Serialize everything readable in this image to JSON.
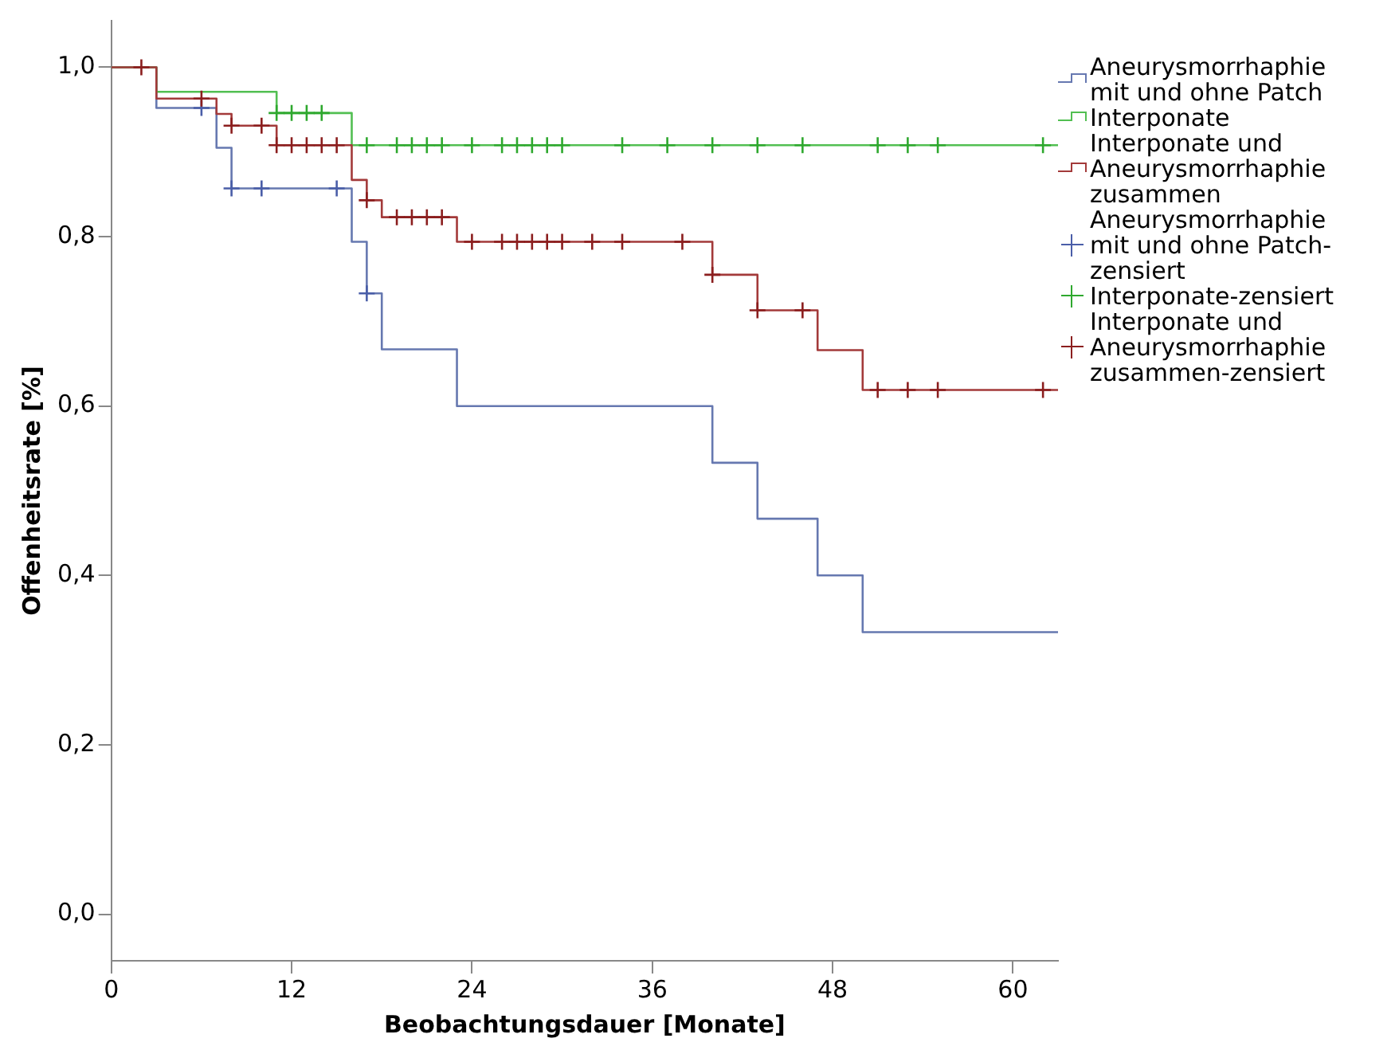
{
  "chart_data": {
    "type": "step",
    "xlabel": "Beobachtungsdauer [Monate]",
    "ylabel": "Offenheitsrate [%]",
    "xlim": [
      0,
      63
    ],
    "xticks": [
      0,
      12,
      24,
      36,
      48,
      60
    ],
    "ylim": [
      -0.055,
      1.055
    ],
    "yticks": [
      {
        "value": 0,
        "label": "0,0"
      },
      {
        "value": 0.2,
        "label": "0,2"
      },
      {
        "value": 0.4,
        "label": "0,4"
      },
      {
        "value": 0.6,
        "label": "0,6"
      },
      {
        "value": 0.8,
        "label": "0,8"
      },
      {
        "value": 1,
        "label": "1,0"
      }
    ],
    "legend": "right",
    "series": [
      {
        "name": "Aneurysmorrhaphie mit und ohne Patch",
        "color": "#6678b0",
        "x": [
          0,
          3,
          7,
          8,
          16,
          17,
          18,
          23,
          40,
          43,
          47,
          50,
          63
        ],
        "values": [
          1,
          0.952,
          0.905,
          0.857,
          0.794,
          0.733,
          0.667,
          0.6,
          0.533,
          0.467,
          0.4,
          0.333,
          0.333
        ]
      },
      {
        "name": "Interponate",
        "color": "#52bf52",
        "x": [
          0,
          3,
          11,
          16,
          63
        ],
        "values": [
          1,
          0.971,
          0.946,
          0.908,
          0.908
        ]
      },
      {
        "name": "Interponate und Aneurysmorrhaphie zusammen",
        "color": "#a33a3a",
        "x": [
          0,
          3,
          7,
          8,
          11,
          16,
          17,
          18,
          23,
          40,
          43,
          47,
          50,
          63
        ],
        "values": [
          1,
          0.963,
          0.945,
          0.931,
          0.908,
          0.867,
          0.843,
          0.823,
          0.794,
          0.755,
          0.713,
          0.666,
          0.619,
          0.619
        ]
      },
      {
        "name": "Aneurysmorrhaphie mit und ohne Patch-zensiert",
        "type": "scatter",
        "marker": "cross",
        "color": "#4a5ea8",
        "x": [
          6,
          8,
          10,
          15,
          17
        ],
        "values": [
          0.952,
          0.857,
          0.857,
          0.857,
          0.733
        ]
      },
      {
        "name": "Interponate-zensiert",
        "type": "scatter",
        "marker": "cross",
        "color": "#2ea82e",
        "x": [
          11,
          12,
          13,
          14,
          17,
          19,
          20,
          21,
          22,
          24,
          26,
          27,
          28,
          29,
          30,
          34,
          37,
          40,
          43,
          46,
          51,
          53,
          55,
          62
        ],
        "values": [
          0.946,
          0.946,
          0.946,
          0.946,
          0.908,
          0.908,
          0.908,
          0.908,
          0.908,
          0.908,
          0.908,
          0.908,
          0.908,
          0.908,
          0.908,
          0.908,
          0.908,
          0.908,
          0.908,
          0.908,
          0.908,
          0.908,
          0.908,
          0.908
        ]
      },
      {
        "name": "Interponate und Aneurysmorrhaphie zusammen-zensiert",
        "type": "scatter",
        "marker": "cross",
        "color": "#8b1e1e",
        "x": [
          2,
          6,
          8,
          10,
          11,
          12,
          13,
          14,
          15,
          17,
          19,
          20,
          21,
          22,
          24,
          26,
          27,
          28,
          29,
          30,
          32,
          34,
          38,
          40,
          43,
          46,
          51,
          53,
          55,
          62
        ],
        "values": [
          1,
          0.963,
          0.931,
          0.931,
          0.908,
          0.908,
          0.908,
          0.908,
          0.908,
          0.843,
          0.823,
          0.823,
          0.823,
          0.823,
          0.794,
          0.794,
          0.794,
          0.794,
          0.794,
          0.794,
          0.794,
          0.794,
          0.794,
          0.755,
          0.713,
          0.713,
          0.619,
          0.619,
          0.619,
          0.619
        ]
      }
    ]
  }
}
